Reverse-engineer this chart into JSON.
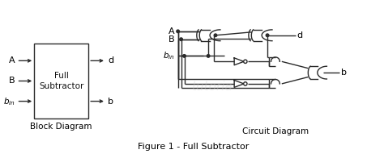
{
  "bg_color": "#ffffff",
  "line_color": "#2a2a2a",
  "text_color": "#000000",
  "title": "Figure 1 - Full Subtractor",
  "left_label": "Block Diagram",
  "right_label": "Circuit Diagram",
  "fig_width": 4.74,
  "fig_height": 1.96,
  "dpi": 100
}
